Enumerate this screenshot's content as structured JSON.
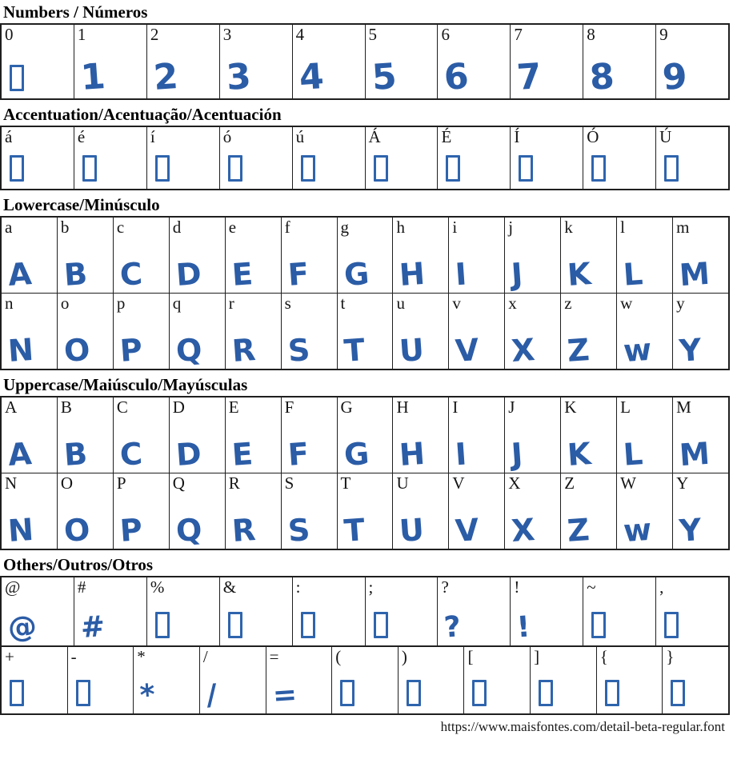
{
  "colors": {
    "glyph": "#2b5ca6",
    "missing_box": "#2e64ad"
  },
  "footer": {
    "url": "https://www.maisfontes.com/detail-beta-regular.font"
  },
  "sections": [
    {
      "kind": "numbers",
      "title": "Numbers / Números",
      "rows": [
        [
          {
            "label": "0",
            "missing": true
          },
          {
            "label": "1",
            "glyph": "1"
          },
          {
            "label": "2",
            "glyph": "2"
          },
          {
            "label": "3",
            "glyph": "3"
          },
          {
            "label": "4",
            "glyph": "4"
          },
          {
            "label": "5",
            "glyph": "5"
          },
          {
            "label": "6",
            "glyph": "6"
          },
          {
            "label": "7",
            "glyph": "7"
          },
          {
            "label": "8",
            "glyph": "8"
          },
          {
            "label": "9",
            "glyph": "9"
          }
        ]
      ]
    },
    {
      "kind": "accent",
      "title": "Accentuation/Acentuação/Acentuación",
      "rows": [
        [
          {
            "label": "á",
            "missing": true
          },
          {
            "label": "é",
            "missing": true
          },
          {
            "label": "í",
            "missing": true
          },
          {
            "label": "ó",
            "missing": true
          },
          {
            "label": "ú",
            "missing": true
          },
          {
            "label": "Á",
            "missing": true
          },
          {
            "label": "É",
            "missing": true
          },
          {
            "label": "Í",
            "missing": true
          },
          {
            "label": "Ó",
            "missing": true
          },
          {
            "label": "Ú",
            "missing": true
          }
        ]
      ]
    },
    {
      "kind": "lowercase",
      "title": "Lowercase/Minúsculo",
      "rows": [
        [
          {
            "label": "a",
            "glyph": "A"
          },
          {
            "label": "b",
            "glyph": "B"
          },
          {
            "label": "c",
            "glyph": "C"
          },
          {
            "label": "d",
            "glyph": "D"
          },
          {
            "label": "e",
            "glyph": "E"
          },
          {
            "label": "f",
            "glyph": "F"
          },
          {
            "label": "g",
            "glyph": "G"
          },
          {
            "label": "h",
            "glyph": "H"
          },
          {
            "label": "i",
            "glyph": "I"
          },
          {
            "label": "j",
            "glyph": "J"
          },
          {
            "label": "k",
            "glyph": "K"
          },
          {
            "label": "l",
            "glyph": "L"
          },
          {
            "label": "m",
            "glyph": "M"
          }
        ],
        [
          {
            "label": "n",
            "glyph": "N"
          },
          {
            "label": "o",
            "glyph": "O"
          },
          {
            "label": "p",
            "glyph": "P"
          },
          {
            "label": "q",
            "glyph": "Q"
          },
          {
            "label": "r",
            "glyph": "R"
          },
          {
            "label": "s",
            "glyph": "S"
          },
          {
            "label": "t",
            "glyph": "T"
          },
          {
            "label": "u",
            "glyph": "U"
          },
          {
            "label": "v",
            "glyph": "V"
          },
          {
            "label": "x",
            "glyph": "X"
          },
          {
            "label": "z",
            "glyph": "Z"
          },
          {
            "label": "w",
            "glyph": "w"
          },
          {
            "label": "y",
            "glyph": "Y"
          }
        ]
      ]
    },
    {
      "kind": "uppercase",
      "title": "Uppercase/Maiúsculo/Mayúsculas",
      "rows": [
        [
          {
            "label": "A",
            "glyph": "A"
          },
          {
            "label": "B",
            "glyph": "B"
          },
          {
            "label": "C",
            "glyph": "C"
          },
          {
            "label": "D",
            "glyph": "D"
          },
          {
            "label": "E",
            "glyph": "E"
          },
          {
            "label": "F",
            "glyph": "F"
          },
          {
            "label": "G",
            "glyph": "G"
          },
          {
            "label": "H",
            "glyph": "H"
          },
          {
            "label": "I",
            "glyph": "I"
          },
          {
            "label": "J",
            "glyph": "J"
          },
          {
            "label": "K",
            "glyph": "K"
          },
          {
            "label": "L",
            "glyph": "L"
          },
          {
            "label": "M",
            "glyph": "M"
          }
        ],
        [
          {
            "label": "N",
            "glyph": "N"
          },
          {
            "label": "O",
            "glyph": "O"
          },
          {
            "label": "P",
            "glyph": "P"
          },
          {
            "label": "Q",
            "glyph": "Q"
          },
          {
            "label": "R",
            "glyph": "R"
          },
          {
            "label": "S",
            "glyph": "S"
          },
          {
            "label": "T",
            "glyph": "T"
          },
          {
            "label": "U",
            "glyph": "U"
          },
          {
            "label": "V",
            "glyph": "V"
          },
          {
            "label": "X",
            "glyph": "X"
          },
          {
            "label": "Z",
            "glyph": "Z"
          },
          {
            "label": "W",
            "glyph": "w"
          },
          {
            "label": "Y",
            "glyph": "Y"
          }
        ]
      ]
    },
    {
      "kind": "others",
      "title": "Others/Outros/Otros",
      "rows": [
        [
          {
            "label": "@",
            "glyph": "@"
          },
          {
            "label": "#",
            "glyph": "#"
          },
          {
            "label": "%",
            "missing": true
          },
          {
            "label": "&",
            "missing": true
          },
          {
            "label": ":",
            "missing": true
          },
          {
            "label": ";",
            "missing": true
          },
          {
            "label": "?",
            "glyph": "?"
          },
          {
            "label": "!",
            "glyph": "!"
          },
          {
            "label": "~",
            "missing": true
          },
          {
            "label": ",",
            "missing": true
          }
        ],
        [
          {
            "label": "+",
            "missing": true
          },
          {
            "label": "-",
            "missing": true
          },
          {
            "label": "*",
            "glyph": "*"
          },
          {
            "label": "/",
            "glyph": "/"
          },
          {
            "label": "=",
            "glyph": "="
          },
          {
            "label": "(",
            "missing": true
          },
          {
            "label": ")",
            "missing": true
          },
          {
            "label": "[",
            "missing": true
          },
          {
            "label": "]",
            "missing": true
          },
          {
            "label": "{",
            "missing": true
          },
          {
            "label": "}",
            "missing": true
          }
        ]
      ]
    }
  ]
}
